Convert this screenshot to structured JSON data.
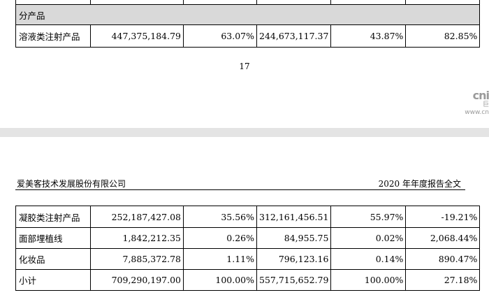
{
  "top_table": {
    "section_label": "分产品",
    "rows": [
      {
        "name": "溶液类注射产品",
        "amount_2020": "447,375,184.79",
        "ratio_2020": "63.07%",
        "amount_2019": "244,673,117.37",
        "ratio_2019": "43.87%",
        "change": "82.85%"
      }
    ]
  },
  "page_number": "17",
  "watermark": {
    "big": "cni",
    "small1": "巨",
    "small2": "www.cn"
  },
  "header": {
    "company": "爱美客技术发展股份有限公司",
    "report": "2020 年年度报告全文"
  },
  "bottom_table": {
    "rows": [
      {
        "name": "凝胶类注射产品",
        "amount_2020": "252,187,427.08",
        "ratio_2020": "35.56%",
        "amount_2019": "312,161,456.51",
        "ratio_2019": "55.97%",
        "change": "-19.21%"
      },
      {
        "name": "面部埋植线",
        "amount_2020": "1,842,212.35",
        "ratio_2020": "0.26%",
        "amount_2019": "84,955.75",
        "ratio_2019": "0.02%",
        "change": "2,068.44%"
      },
      {
        "name": "化妆品",
        "amount_2020": "7,885,372.78",
        "ratio_2020": "1.11%",
        "amount_2019": "796,123.16",
        "ratio_2019": "0.14%",
        "change": "890.47%"
      },
      {
        "name": "小计",
        "amount_2020": "709,290,197.00",
        "ratio_2020": "100.00%",
        "amount_2019": "557,715,652.79",
        "ratio_2019": "100.00%",
        "change": "27.18%"
      }
    ]
  }
}
